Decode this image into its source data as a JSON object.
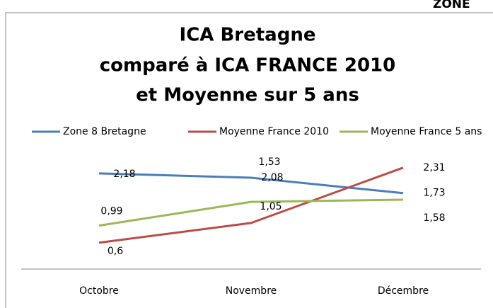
{
  "corner_text": "ZONE",
  "chart_data": {
    "type": "line",
    "title": [
      "ICA Bretagne",
      "comparé à ICA FRANCE 2010",
      "et Moyenne sur 5 ans"
    ],
    "categories": [
      "Octobre",
      "Novembre",
      "Décembre"
    ],
    "series": [
      {
        "name": "Zone 8 Bretagne",
        "color": "#4a7ebb",
        "values": [
          2.18,
          2.08,
          1.73
        ],
        "value_labels": [
          "2,18",
          "2,08",
          "1,73"
        ]
      },
      {
        "name": "Moyenne France 2010",
        "color": "#be4b48",
        "values": [
          0.6,
          1.05,
          2.31
        ],
        "value_labels": [
          "0,6",
          "1,05",
          "2,31"
        ]
      },
      {
        "name": "Moyenne France 5 ans",
        "color": "#98b954",
        "values": [
          0.99,
          1.53,
          1.58
        ],
        "value_labels": [
          "0,99",
          "1,53",
          "1,58"
        ]
      }
    ],
    "ylim": [
      0,
      2.5
    ],
    "legend": "top"
  }
}
